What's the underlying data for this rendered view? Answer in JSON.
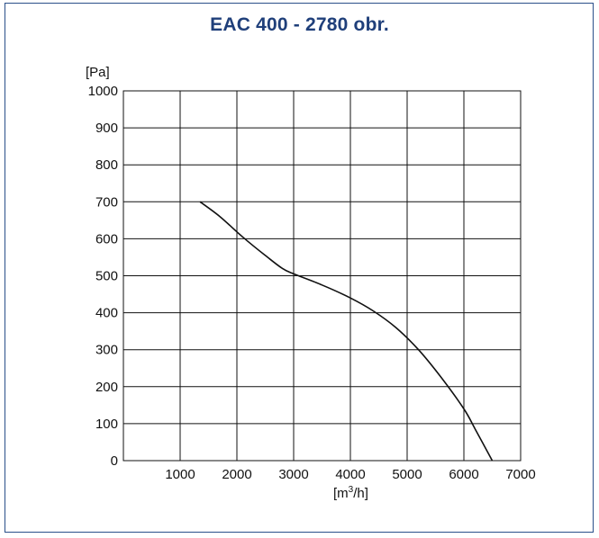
{
  "chart_data": {
    "type": "line",
    "title": "EAC 400 - 2780 obr.",
    "ylabel": "[Pa]",
    "xlabel_base": "[m",
    "xlabel_sup": "3",
    "xlabel_tail": "/h]",
    "xlim": [
      0,
      7000
    ],
    "ylim": [
      0,
      1000
    ],
    "x_ticks": [
      "1000",
      "2000",
      "3000",
      "4000",
      "5000",
      "6000",
      "7000"
    ],
    "y_ticks": [
      "0",
      "100",
      "200",
      "300",
      "400",
      "500",
      "600",
      "700",
      "800",
      "900",
      "1000"
    ],
    "grid": true,
    "series": [
      {
        "x": [
          1350,
          1700,
          2100,
          2500,
          2800,
          3000,
          3500,
          4000,
          4400,
          4800,
          5200,
          5600,
          6000,
          6200,
          6500
        ],
        "y": [
          700,
          660,
          605,
          555,
          520,
          505,
          475,
          440,
          405,
          360,
          300,
          225,
          140,
          85,
          0
        ]
      }
    ]
  }
}
